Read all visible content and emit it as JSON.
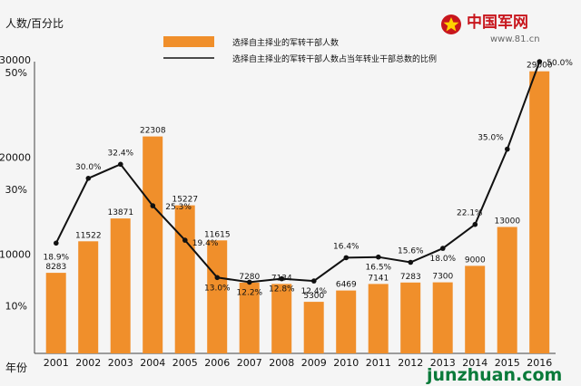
{
  "chart_data": {
    "type": "bar",
    "ylabel_top": "人数/百分比",
    "xlabel": "年份",
    "categories": [
      "2001",
      "2002",
      "2003",
      "2004",
      "2005",
      "2006",
      "2007",
      "2008",
      "2009",
      "2010",
      "2011",
      "2012",
      "2013",
      "2014",
      "2015",
      "2016"
    ],
    "series": [
      {
        "name": "选择自主择业的军转干部人数",
        "type": "bar",
        "color": "#f08f2b",
        "values": [
          8283,
          11522,
          13871,
          22308,
          15227,
          11615,
          7280,
          7134,
          5300,
          6469,
          7141,
          7283,
          7300,
          9000,
          13000,
          29000
        ],
        "labels": [
          "8283",
          "11522",
          "13871",
          "22308",
          "15227",
          "11615",
          "7280",
          "7134",
          "5300",
          "6469",
          "7141",
          "7283",
          "7300",
          "9000",
          "13000",
          "29000"
        ]
      },
      {
        "name": "选择自主择业的军转干部人数占当年转业干部总数的比例",
        "type": "line",
        "color": "#111111",
        "values": [
          18.9,
          30.0,
          32.4,
          25.3,
          19.4,
          13.0,
          12.2,
          12.8,
          12.4,
          16.4,
          16.5,
          15.6,
          18.0,
          22.1,
          35.0,
          50.0
        ],
        "labels": [
          "18.9%",
          "30.0%",
          "32.4%",
          "25.3%",
          "19.4%",
          "13.0%",
          "12.2%",
          "12.8%",
          "12.4%",
          "16.4%",
          "16.5%",
          "15.6%",
          "18.0%",
          "22.1%",
          "35.0%",
          "50.0%"
        ]
      }
    ],
    "y_left": {
      "ticks": [
        "10000",
        "20000",
        "30000"
      ],
      "tick_values": [
        10000,
        20000,
        30000
      ],
      "ylim": [
        0,
        30000
      ]
    },
    "y_right": {
      "ticks": [
        "10%",
        "30%",
        "50%"
      ],
      "tick_values": [
        10,
        30,
        50
      ],
      "ylim": [
        0,
        50
      ]
    },
    "grid": false,
    "legend": "top"
  },
  "watermark": {
    "logo_text": "中国军网",
    "logo_url": "www.81.cn",
    "footer": "junzhuan.com"
  }
}
